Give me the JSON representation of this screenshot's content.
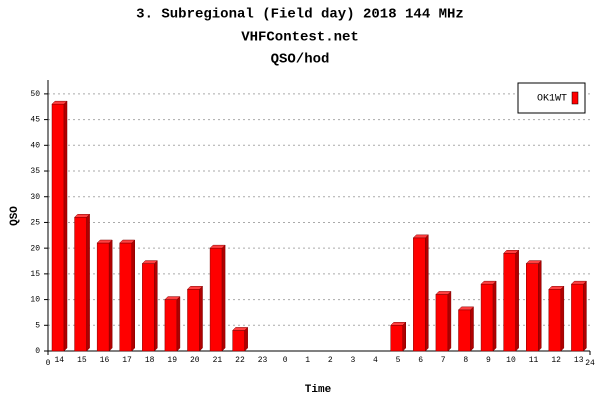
{
  "chart_data": {
    "type": "bar3d",
    "title": "3. Subregional (Field day) 2018 144 MHz",
    "subtitle": "VHFContest.net",
    "subtitle2": "QSO/hod",
    "xlabel": "Time",
    "ylabel": "QSO",
    "categories": [
      "14",
      "15",
      "16",
      "17",
      "18",
      "19",
      "20",
      "21",
      "22",
      "23",
      "0",
      "1",
      "2",
      "3",
      "4",
      "5",
      "6",
      "7",
      "8",
      "9",
      "10",
      "11",
      "12",
      "13"
    ],
    "xlim": [
      0,
      24
    ],
    "xticks": [
      0,
      24
    ],
    "series": [
      {
        "name": "OK1WT",
        "color": "#ff0000",
        "values": [
          48,
          26,
          21,
          21,
          17,
          10,
          12,
          20,
          4,
          0,
          0,
          0,
          0,
          0,
          0,
          5,
          22,
          11,
          8,
          13,
          19,
          17,
          12,
          13
        ]
      }
    ],
    "ylim": [
      0,
      52.7
    ],
    "yticks": [
      0,
      5,
      10,
      15,
      20,
      25,
      30,
      35,
      40,
      45,
      50
    ],
    "grid": true,
    "legend": "top-right"
  }
}
